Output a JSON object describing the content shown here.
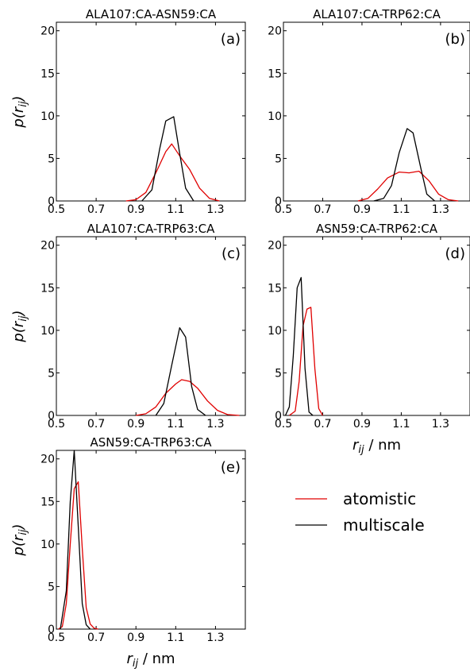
{
  "chart_data": [
    {
      "type": "line",
      "panel": "(a)",
      "title": "ALA107:CA-ASN59:CA",
      "ylabel": "p(r_ij)",
      "xlabel": "",
      "xlim": [
        0.5,
        1.45
      ],
      "ylim": [
        0,
        21
      ],
      "xticks": [
        "0.5",
        "0.7",
        "0.9",
        "1.1",
        "1.3"
      ],
      "yticks": [
        "0",
        "5",
        "10",
        "15",
        "20"
      ],
      "series": [
        {
          "name": "atomistic",
          "color": "#e00000",
          "x": [
            0.85,
            0.9,
            0.95,
            1.0,
            1.05,
            1.08,
            1.12,
            1.17,
            1.22,
            1.27,
            1.32
          ],
          "y": [
            0.0,
            0.15,
            1.0,
            3.3,
            5.8,
            6.7,
            5.3,
            3.7,
            1.5,
            0.3,
            0.0
          ]
        },
        {
          "name": "multiscale",
          "color": "#000000",
          "x": [
            0.93,
            0.98,
            1.02,
            1.05,
            1.09,
            1.12,
            1.15,
            1.19
          ],
          "y": [
            0.0,
            1.3,
            6.2,
            9.4,
            9.9,
            5.6,
            1.5,
            0.0
          ]
        }
      ]
    },
    {
      "type": "line",
      "panel": "(b)",
      "title": "ALA107:CA-TRP62:CA",
      "ylabel": "",
      "xlabel": "",
      "xlim": [
        0.5,
        1.45
      ],
      "ylim": [
        0,
        21
      ],
      "xticks": [
        "0.5",
        "0.7",
        "0.9",
        "1.1",
        "1.3"
      ],
      "yticks": [
        "0",
        "5",
        "10",
        "15",
        "20"
      ],
      "series": [
        {
          "name": "atomistic",
          "color": "#e00000",
          "x": [
            0.88,
            0.93,
            0.98,
            1.03,
            1.09,
            1.14,
            1.19,
            1.24,
            1.29,
            1.34,
            1.39
          ],
          "y": [
            0.0,
            0.3,
            1.4,
            2.7,
            3.4,
            3.3,
            3.5,
            2.4,
            0.8,
            0.15,
            0.0
          ]
        },
        {
          "name": "multiscale",
          "color": "#000000",
          "x": [
            0.96,
            1.01,
            1.05,
            1.09,
            1.13,
            1.16,
            1.2,
            1.23,
            1.27
          ],
          "y": [
            0.0,
            0.3,
            1.8,
            5.7,
            8.5,
            8.0,
            3.8,
            0.8,
            0.0
          ]
        }
      ]
    },
    {
      "type": "line",
      "panel": "(c)",
      "title": "ALA107:CA-TRP63:CA",
      "ylabel": "p(r_ij)",
      "xlabel": "",
      "xlim": [
        0.5,
        1.45
      ],
      "ylim": [
        0,
        21
      ],
      "xticks": [
        "0.5",
        "0.7",
        "0.9",
        "1.1",
        "1.3"
      ],
      "yticks": [
        "0",
        "5",
        "10",
        "15",
        "20"
      ],
      "series": [
        {
          "name": "atomistic",
          "color": "#e00000",
          "x": [
            0.9,
            0.95,
            1.0,
            1.05,
            1.1,
            1.13,
            1.17,
            1.21,
            1.26,
            1.31,
            1.36,
            1.42
          ],
          "y": [
            0.0,
            0.2,
            1.0,
            2.6,
            3.7,
            4.2,
            4.0,
            3.2,
            1.7,
            0.6,
            0.1,
            0.0
          ]
        },
        {
          "name": "multiscale",
          "color": "#000000",
          "x": [
            1.0,
            1.04,
            1.08,
            1.12,
            1.15,
            1.18,
            1.21,
            1.25
          ],
          "y": [
            0.0,
            1.4,
            5.9,
            10.3,
            9.2,
            3.4,
            0.7,
            0.0
          ]
        }
      ]
    },
    {
      "type": "line",
      "panel": "(d)",
      "title": "ASN59:CA-TRP62:CA",
      "ylabel": "",
      "xlabel": "r_ij / nm",
      "xlim": [
        0.5,
        1.45
      ],
      "ylim": [
        0,
        21
      ],
      "xticks": [
        "0.5",
        "0.7",
        "0.9",
        "1.1",
        "1.3"
      ],
      "yticks": [
        "0",
        "5",
        "10",
        "15",
        "20"
      ],
      "series": [
        {
          "name": "atomistic",
          "color": "#e00000",
          "x": [
            0.53,
            0.56,
            0.58,
            0.6,
            0.62,
            0.64,
            0.66,
            0.68,
            0.7
          ],
          "y": [
            0.0,
            0.5,
            4.0,
            10.5,
            12.5,
            12.7,
            5.5,
            0.8,
            0.0
          ]
        },
        {
          "name": "multiscale",
          "color": "#000000",
          "x": [
            0.51,
            0.53,
            0.55,
            0.57,
            0.59,
            0.61,
            0.63,
            0.65
          ],
          "y": [
            0.0,
            1.0,
            7.0,
            15.0,
            16.2,
            5.5,
            0.4,
            0.0
          ]
        }
      ]
    },
    {
      "type": "line",
      "panel": "(e)",
      "title": "ASN59:CA-TRP63:CA",
      "ylabel": "p(r_ij)",
      "xlabel": "r_ij / nm",
      "xlim": [
        0.5,
        1.45
      ],
      "ylim": [
        0,
        21
      ],
      "xticks": [
        "0.5",
        "0.7",
        "0.9",
        "1.1",
        "1.3"
      ],
      "yticks": [
        "0",
        "5",
        "10",
        "15",
        "20"
      ],
      "series": [
        {
          "name": "atomistic",
          "color": "#e00000",
          "x": [
            0.51,
            0.53,
            0.55,
            0.57,
            0.59,
            0.61,
            0.63,
            0.65,
            0.67,
            0.69,
            0.71
          ],
          "y": [
            0.0,
            0.3,
            3.0,
            10.0,
            16.5,
            17.3,
            9.5,
            2.5,
            0.6,
            0.1,
            0.0
          ]
        },
        {
          "name": "multiscale",
          "color": "#000000",
          "x": [
            0.52,
            0.55,
            0.57,
            0.59,
            0.61,
            0.63,
            0.65,
            0.67
          ],
          "y": [
            0.0,
            4.5,
            15.0,
            21.0,
            12.0,
            3.0,
            0.5,
            0.0
          ]
        }
      ]
    }
  ],
  "legend": {
    "items": [
      {
        "label": "atomistic",
        "color": "#e00000"
      },
      {
        "label": "multiscale",
        "color": "#000000"
      }
    ]
  }
}
